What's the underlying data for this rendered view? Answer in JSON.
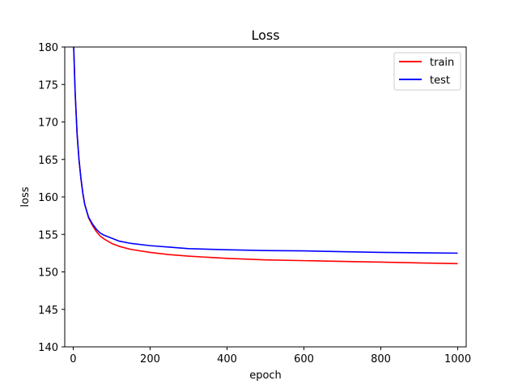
{
  "chart_data": {
    "type": "line",
    "title": "Loss",
    "xlabel": "epoch",
    "ylabel": "loss",
    "xlim": [
      -22,
      1022
    ],
    "ylim": [
      140,
      180
    ],
    "xticks": [
      0,
      200,
      400,
      600,
      800,
      1000
    ],
    "yticks": [
      140,
      145,
      150,
      155,
      160,
      165,
      170,
      175,
      180
    ],
    "grid": false,
    "legend_position": "top-right",
    "series": [
      {
        "name": "train",
        "color": "#ff0000",
        "x": [
          0,
          5,
          10,
          15,
          20,
          25,
          30,
          40,
          50,
          60,
          70,
          80,
          100,
          120,
          150,
          200,
          250,
          300,
          400,
          500,
          600,
          700,
          800,
          900,
          1000
        ],
        "y": [
          182,
          174,
          168.5,
          165,
          162.5,
          160.5,
          159,
          157.2,
          156.2,
          155.4,
          154.8,
          154.4,
          153.8,
          153.4,
          153.0,
          152.6,
          152.3,
          152.1,
          151.8,
          151.6,
          151.5,
          151.4,
          151.3,
          151.2,
          151.1
        ]
      },
      {
        "name": "test",
        "color": "#0000ff",
        "x": [
          0,
          5,
          10,
          15,
          20,
          25,
          30,
          40,
          50,
          60,
          70,
          80,
          100,
          120,
          150,
          200,
          250,
          300,
          400,
          500,
          600,
          700,
          800,
          900,
          1000
        ],
        "y": [
          182,
          174,
          168.5,
          165,
          162.5,
          160.5,
          159,
          157.3,
          156.4,
          155.7,
          155.2,
          154.9,
          154.5,
          154.1,
          153.8,
          153.5,
          153.3,
          153.1,
          152.95,
          152.85,
          152.8,
          152.7,
          152.6,
          152.55,
          152.5
        ]
      }
    ]
  }
}
